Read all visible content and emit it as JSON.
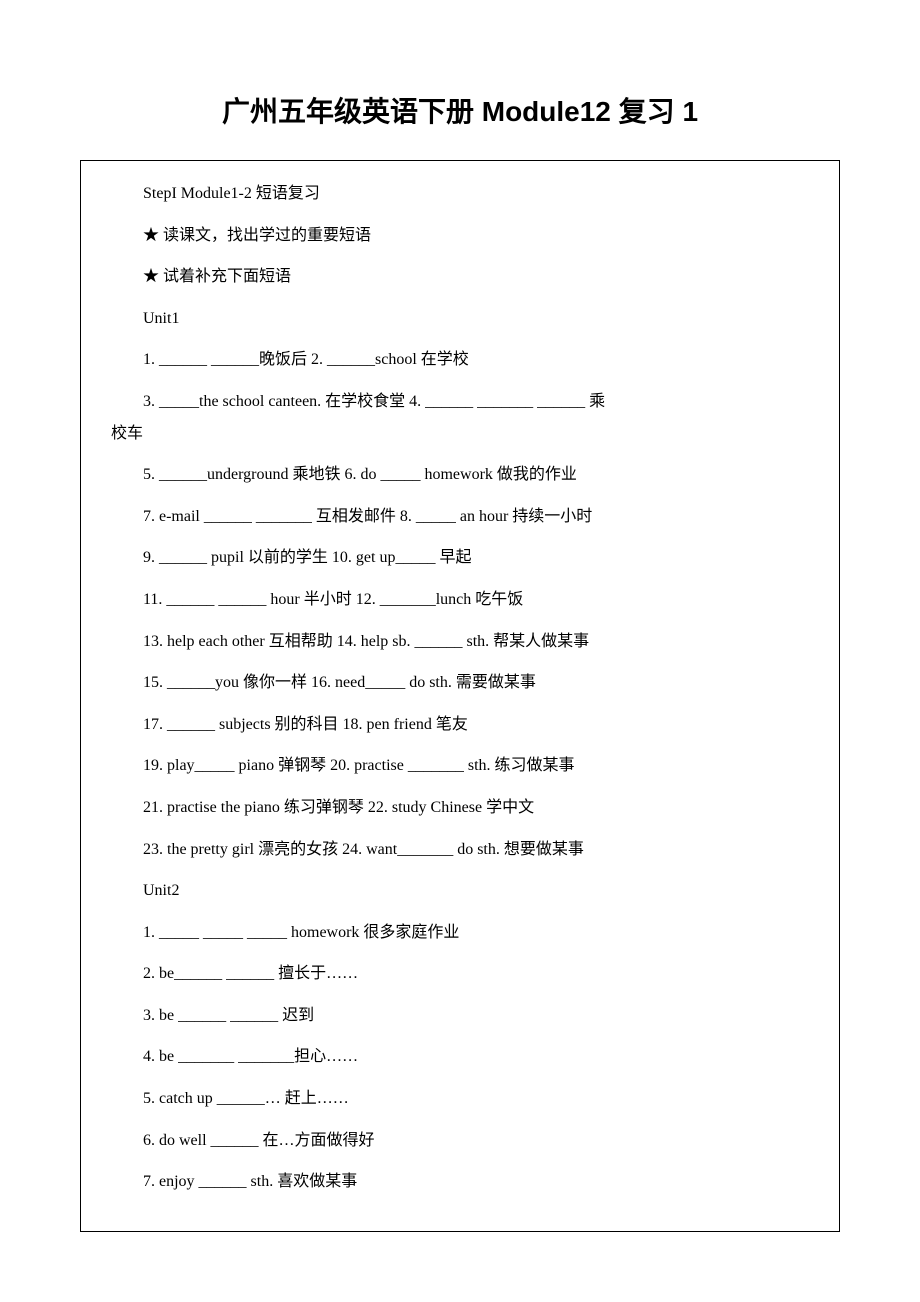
{
  "title": "广州五年级英语下册 Module12 复习 1",
  "lines": [
    {
      "text": "StepI Module1-2 短语复习",
      "indent": true
    },
    {
      "text": "★ 读课文，找出学过的重要短语",
      "indent": true
    },
    {
      "text": "★ 试着补充下面短语",
      "indent": true
    },
    {
      "text": "Unit1",
      "indent": true
    },
    {
      "text": "1. ______ ______晚饭后  2. ______school  在学校",
      "indent": true
    },
    {
      "text": "3. _____the school canteen. 在学校食堂  4. ______ _______ ______  乘校车",
      "indent": true,
      "wrap": true
    },
    {
      "text": "5. ______underground 乘地铁  6. do _____ homework 做我的作业",
      "indent": true
    },
    {
      "text": "7. e-mail ______ _______ 互相发邮件 8. _____ an hour 持续一小时",
      "indent": true
    },
    {
      "text": "9. ______ pupil 以前的学生  10. get up_____ 早起",
      "indent": true
    },
    {
      "text": "11. ______ ______ hour 半小时  12. _______lunch 吃午饭",
      "indent": true
    },
    {
      "text": "13. help each other 互相帮助 14. help sb. ______ sth. 帮某人做某事",
      "indent": true
    },
    {
      "text": "15. ______you 像你一样  16. need_____ do sth. 需要做某事",
      "indent": true
    },
    {
      "text": "17. ______ subjects 别的科目 18. pen friend 笔友",
      "indent": true
    },
    {
      "text": "19. play_____ piano 弹钢琴 20. practise _______ sth. 练习做某事",
      "indent": true
    },
    {
      "text": "21. practise the piano 练习弹钢琴 22. study Chinese 学中文",
      "indent": true
    },
    {
      "text": "23. the pretty girl 漂亮的女孩 24. want_______ do sth. 想要做某事",
      "indent": true
    },
    {
      "text": "Unit2",
      "indent": true
    },
    {
      "text": "1. _____ _____ _____ homework 很多家庭作业",
      "indent": true
    },
    {
      "text": "2. be______ ______ 擅长于……",
      "indent": true
    },
    {
      "text": "3. be ______ ______ 迟到",
      "indent": true
    },
    {
      "text": "4. be _______ _______担心……",
      "indent": true
    },
    {
      "text": "5. catch up ______… 赶上……",
      "indent": true
    },
    {
      "text": "6. do well ______ 在…方面做得好",
      "indent": true
    },
    {
      "text": "7. enjoy ______ sth. 喜欢做某事",
      "indent": true
    }
  ],
  "watermark": "www.bdocx.com",
  "colors": {
    "text": "#000000",
    "background": "#ffffff",
    "border": "#000000",
    "watermark": "#f2f2f2"
  },
  "fontsize": {
    "title": 28,
    "body": 16
  }
}
